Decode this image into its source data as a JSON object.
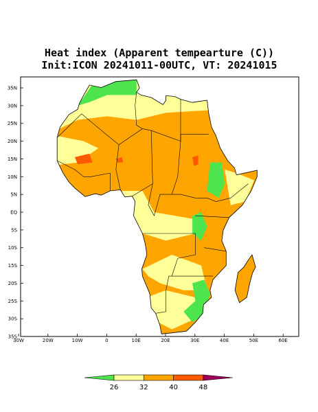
{
  "title_line_1": "Heat index (Apparent tempearture (C))",
  "title_line_2": "Init:ICON 20241011-00UTC, VT: 20241015",
  "lat_labels": [
    "35N",
    "30N",
    "25N",
    "20N",
    "15N",
    "10N",
    "5N",
    "EQ",
    "5S",
    "10S",
    "15S",
    "20S",
    "25S",
    "30S",
    "35S"
  ],
  "lon_labels": [
    "30W",
    "20W",
    "10W",
    "0",
    "10E",
    "20E",
    "30E",
    "40E",
    "50E",
    "60E"
  ],
  "colorbar": {
    "ticks": [
      26,
      32,
      40,
      48
    ],
    "colors": [
      "#4ee44e",
      "#ffff99",
      "#ffa500",
      "#ff5a00",
      "#a0005a"
    ]
  }
}
